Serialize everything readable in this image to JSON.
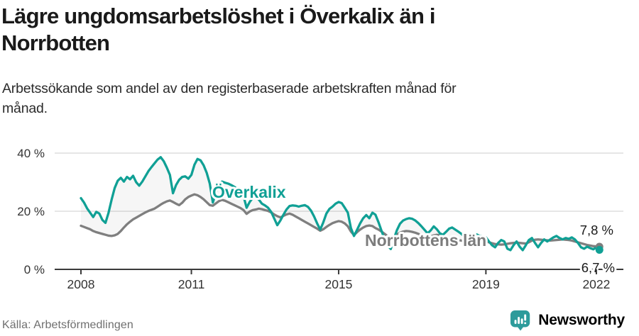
{
  "header": {
    "title_lines": [
      "Lägre ungdomsarbetslöshet i Överkalix än i",
      "Norrbotten"
    ],
    "subtitle_lines": [
      "Arbetssökande som andel av den registerbaserade arbetskraften månad för",
      "månad."
    ]
  },
  "footer": {
    "source": "Källa: Arbetsförmedlingen",
    "brand": "Newsworthy",
    "brand_icon": "newsworthy-pin-chart-icon"
  },
  "colors": {
    "accent_teal": "#10a095",
    "series_gray": "#7f7f7f",
    "brand_teal": "#2d9b9b",
    "text_dark": "#1a1a1a",
    "tick_text": "#333333",
    "muted_text": "#6f6f6f",
    "grid": "#d8d8d8",
    "axis": "#3a3a3a",
    "fill_between": "rgba(128,128,128,0.07)"
  },
  "chart_data": {
    "type": "line",
    "title": "Lägre ungdomsarbetslöshet i Överkalix än i Norrbotten",
    "subtitle": "Arbetssökande som andel av den registerbaserade arbetskraften månad för månad.",
    "unit": "%",
    "frequency": "monthly",
    "start": "2008-01",
    "end": "2022-02",
    "xlabel": "",
    "ylabel": "",
    "ylim": [
      0,
      44
    ],
    "grid": "horizontal",
    "legend_position": "inline-labels",
    "x_ticks": [
      {
        "label": "2008",
        "year": 2008
      },
      {
        "label": "2011",
        "year": 2011
      },
      {
        "label": "2015",
        "year": 2015
      },
      {
        "label": "2019",
        "year": 2019
      },
      {
        "label": "2022",
        "year": 2022
      }
    ],
    "y_ticks": [
      {
        "label": "40 %",
        "value": 40
      },
      {
        "label": "20 %",
        "value": 20
      },
      {
        "label": "0 %",
        "value": 0
      }
    ],
    "series": [
      {
        "name": "Överkalix",
        "color": "#10a095",
        "end_label": "6,7 %",
        "end_value": 6.7,
        "values": [
          24.5,
          23.0,
          21.0,
          19.5,
          18.0,
          19.8,
          19.2,
          17.0,
          16.0,
          19.5,
          24.0,
          28.0,
          30.5,
          31.5,
          30.2,
          31.8,
          31.0,
          32.2,
          30.0,
          28.8,
          30.2,
          32.0,
          33.8,
          35.2,
          36.5,
          37.8,
          38.6,
          37.2,
          35.0,
          32.5,
          26.2,
          29.0,
          30.8,
          31.8,
          32.0,
          31.2,
          32.5,
          36.0,
          38.0,
          37.5,
          35.8,
          33.2,
          29.5,
          23.0,
          26.5,
          29.0,
          30.2,
          29.8,
          29.5,
          29.0,
          28.4,
          27.6,
          26.8,
          25.2,
          21.2,
          23.2,
          24.6,
          24.8,
          24.0,
          22.6,
          22.0,
          21.2,
          19.8,
          17.5,
          15.2,
          16.8,
          18.8,
          20.6,
          21.8,
          22.0,
          21.9,
          21.6,
          21.9,
          22.1,
          21.5,
          20.2,
          18.2,
          15.8,
          13.7,
          16.2,
          19.2,
          20.8,
          21.6,
          22.6,
          23.2,
          22.8,
          21.2,
          19.5,
          14.2,
          11.5,
          13.6,
          15.8,
          17.6,
          18.7,
          17.6,
          19.5,
          18.8,
          16.2,
          13.2,
          10.2,
          8.2,
          7.0,
          10.5,
          13.5,
          15.7,
          16.8,
          17.3,
          17.6,
          17.4,
          16.8,
          15.9,
          14.8,
          13.6,
          12.4,
          13.4,
          14.8,
          13.8,
          12.4,
          11.9,
          12.9,
          14.0,
          14.4,
          13.7,
          13.0,
          12.2,
          11.2,
          10.7,
          11.7,
          12.2,
          12.0,
          11.5,
          11.3,
          11.0,
          9.6,
          8.3,
          7.6,
          9.1,
          10.1,
          9.6,
          7.1,
          6.6,
          8.3,
          9.6,
          7.8,
          6.6,
          8.3,
          10.1,
          10.8,
          9.1,
          7.6,
          9.1,
          10.3,
          9.6,
          10.3,
          11.0,
          11.5,
          10.8,
          10.3,
          10.8,
          10.5,
          11.0,
          10.3,
          9.1,
          7.6,
          7.1,
          7.8,
          7.3,
          6.9,
          7.6,
          6.7
        ]
      },
      {
        "name": "Norrbottens län",
        "color": "#7f7f7f",
        "end_label": "7,8 %",
        "end_value": 7.8,
        "values": [
          15.0,
          14.6,
          14.2,
          13.8,
          13.2,
          12.8,
          12.5,
          12.2,
          11.9,
          11.6,
          11.5,
          11.7,
          12.2,
          13.2,
          14.4,
          15.5,
          16.4,
          17.2,
          17.8,
          18.4,
          19.0,
          19.6,
          20.1,
          20.5,
          20.9,
          21.6,
          22.3,
          22.9,
          23.4,
          23.7,
          23.2,
          22.6,
          22.1,
          22.9,
          24.1,
          24.9,
          25.4,
          25.8,
          25.5,
          24.9,
          24.1,
          23.1,
          22.1,
          21.9,
          22.7,
          23.5,
          23.9,
          23.6,
          23.1,
          22.6,
          22.1,
          21.6,
          21.1,
          20.4,
          19.1,
          19.9,
          20.4,
          20.6,
          20.9,
          20.7,
          20.4,
          20.1,
          19.6,
          18.9,
          18.3,
          17.9,
          18.4,
          18.9,
          19.2,
          18.8,
          18.2,
          17.6,
          17.0,
          16.4,
          15.8,
          15.2,
          14.6,
          14.0,
          13.3,
          13.8,
          14.6,
          15.3,
          15.9,
          16.3,
          16.6,
          16.4,
          15.8,
          14.8,
          13.0,
          11.8,
          12.8,
          13.7,
          14.4,
          14.9,
          15.1,
          14.9,
          14.2,
          13.7,
          13.0,
          12.2,
          11.4,
          10.8,
          11.3,
          12.0,
          12.6,
          13.0,
          13.2,
          13.1,
          12.9,
          12.6,
          12.2,
          11.8,
          11.4,
          11.0,
          11.3,
          11.7,
          11.9,
          11.7,
          11.4,
          11.0,
          10.9,
          10.7,
          10.4,
          10.1,
          9.9,
          9.6,
          9.4,
          9.6,
          9.9,
          10.0,
          9.9,
          9.7,
          9.6,
          9.3,
          9.0,
          8.7,
          8.6,
          8.5,
          8.6,
          8.8,
          9.0,
          9.1,
          9.2,
          9.1,
          9.0,
          8.9,
          9.3,
          9.9,
          10.2,
          10.3,
          10.2,
          10.1,
          10.0,
          9.9,
          10.0,
          10.1,
          10.2,
          10.3,
          10.2,
          10.1,
          9.9,
          9.6,
          9.3,
          9.0,
          8.7,
          8.4,
          8.2,
          8.0,
          7.9,
          7.8
        ]
      }
    ]
  }
}
